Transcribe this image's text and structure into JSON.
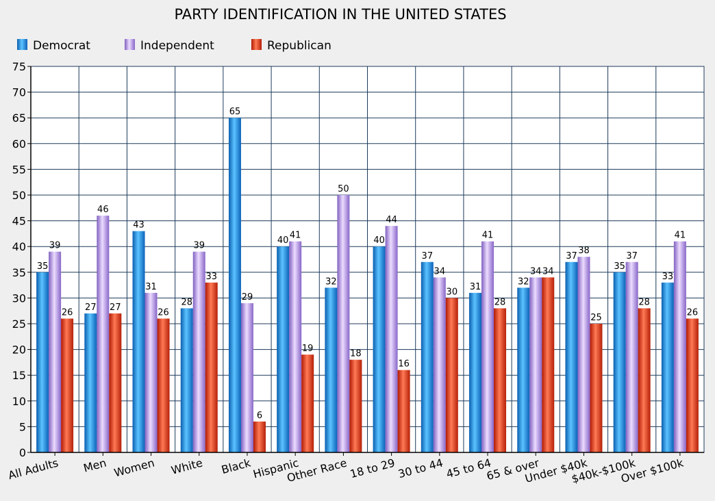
{
  "chart_data": {
    "type": "bar",
    "title": "PARTY IDENTIFICATION IN THE UNITED STATES",
    "xlabel": "",
    "ylabel": "",
    "ylim": [
      0,
      75
    ],
    "yticks": [
      0,
      5,
      10,
      15,
      20,
      25,
      30,
      35,
      40,
      45,
      50,
      55,
      60,
      65,
      70,
      75
    ],
    "grid": true,
    "legend_position": "top-left",
    "categories": [
      "All Adults",
      "Men",
      "Women",
      "White",
      "Black",
      "Hispanic",
      "Other Race",
      "18 to 29",
      "30 to 44",
      "45 to 64",
      "65 & over",
      "Under $40k",
      "$40k-$100k",
      "Over $100k"
    ],
    "series": [
      {
        "name": "Democrat",
        "color": "#1a8fe6",
        "values": [
          35,
          27,
          43,
          28,
          65,
          40,
          32,
          40,
          37,
          31,
          32,
          37,
          35,
          33
        ]
      },
      {
        "name": "Independent",
        "color": "#b48fe6",
        "values": [
          39,
          46,
          31,
          39,
          29,
          41,
          50,
          44,
          34,
          41,
          34,
          38,
          37,
          41
        ]
      },
      {
        "name": "Republican",
        "color": "#e53a1a",
        "values": [
          26,
          27,
          26,
          33,
          6,
          19,
          18,
          16,
          30,
          28,
          34,
          25,
          28,
          26
        ]
      }
    ]
  }
}
